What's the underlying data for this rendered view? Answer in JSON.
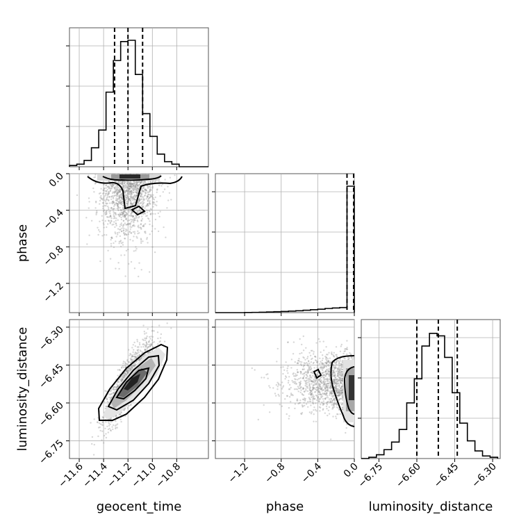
{
  "chart_data": {
    "type": "corner",
    "grid": true,
    "parameters": [
      {
        "key": "t",
        "label": "geocent_time",
        "ticks": [
          -11.6,
          -11.4,
          -11.2,
          -11.0,
          -10.8
        ],
        "tick_labels": [
          "−11.6",
          "−11.4",
          "−11.2",
          "−11.0",
          "−10.8"
        ],
        "range": [
          -11.68,
          -10.54
        ]
      },
      {
        "key": "p",
        "label": "phase",
        "ticks": [
          -1.2,
          -0.8,
          -0.4,
          0.0
        ],
        "tick_labels": [
          "−1.2",
          "−0.8",
          "−0.4",
          "0.0"
        ],
        "range": [
          -1.52,
          0.0
        ]
      },
      {
        "key": "d",
        "label": "luminosity_distance",
        "ticks": [
          -6.75,
          -6.6,
          -6.45,
          -6.3
        ],
        "tick_labels": [
          "−6.75",
          "−6.60",
          "−6.45",
          "−6.30"
        ],
        "range": [
          -6.82,
          -6.27
        ]
      }
    ],
    "histograms": [
      {
        "param": "t",
        "bin_edges": [
          -11.68,
          -11.62,
          -11.56,
          -11.5,
          -11.44,
          -11.38,
          -11.32,
          -11.26,
          -11.2,
          -11.14,
          -11.08,
          -11.02,
          -10.96,
          -10.9,
          -10.84,
          -10.78,
          -10.72,
          -10.66,
          -10.6,
          -10.54
        ],
        "counts": [
          0.01,
          0.02,
          0.05,
          0.15,
          0.29,
          0.59,
          0.84,
          0.99,
          1.0,
          0.73,
          0.42,
          0.24,
          0.1,
          0.04,
          0.02,
          0.0,
          0.0,
          0.0,
          0.0
        ],
        "quantiles": [
          -11.31,
          -11.2,
          -11.08
        ]
      },
      {
        "param": "p",
        "bin_edges": [
          -1.52,
          -1.44,
          -1.36,
          -1.28,
          -1.2,
          -1.12,
          -1.04,
          -0.96,
          -0.88,
          -0.8,
          -0.72,
          -0.64,
          -0.56,
          -0.48,
          -0.4,
          -0.32,
          -0.24,
          -0.16,
          -0.08,
          0.0
        ],
        "counts": [
          0.0,
          0.0,
          0.0,
          0.0,
          0.001,
          0.002,
          0.003,
          0.005,
          0.007,
          0.009,
          0.012,
          0.015,
          0.019,
          0.023,
          0.027,
          0.033,
          0.037,
          0.04,
          1.0
        ],
        "quantiles": [
          -0.08,
          0.0
        ]
      },
      {
        "param": "d",
        "bin_edges": [
          -6.82,
          -6.79,
          -6.76,
          -6.73,
          -6.7,
          -6.67,
          -6.64,
          -6.61,
          -6.58,
          -6.55,
          -6.52,
          -6.49,
          -6.46,
          -6.43,
          -6.4,
          -6.37,
          -6.34,
          -6.31,
          -6.28
        ],
        "counts": [
          0.0,
          0.01,
          0.03,
          0.07,
          0.13,
          0.23,
          0.44,
          0.63,
          0.89,
          0.99,
          0.97,
          0.8,
          0.52,
          0.28,
          0.14,
          0.06,
          0.02,
          0.01
        ],
        "quantiles": [
          -6.6,
          -6.515,
          -6.44
        ]
      }
    ],
    "density_panels": [
      {
        "x": "t",
        "y": "p",
        "centroid": [
          -11.2,
          -0.02
        ],
        "x_spread": 0.12,
        "y_spread": 0.28
      },
      {
        "x": "t",
        "y": "d",
        "centroid": [
          -11.2,
          -6.52
        ],
        "x_spread": 0.1,
        "y_spread": 0.08,
        "correlation": 0.85
      },
      {
        "x": "p",
        "y": "d",
        "centroid": [
          -0.02,
          -6.52
        ],
        "x_spread": 0.35,
        "y_spread": 0.06
      }
    ]
  }
}
